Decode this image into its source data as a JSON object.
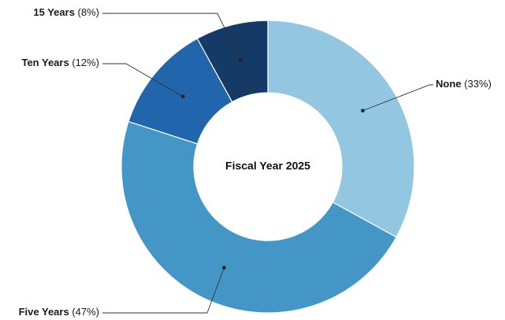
{
  "chart_data": {
    "type": "pie",
    "donut": true,
    "center_label": "Fiscal Year 2025",
    "slices": [
      {
        "name": "None",
        "percent_label": "(33%)",
        "value": 33,
        "color": "#93c6e0"
      },
      {
        "name": "Five Years",
        "percent_label": "(47%)",
        "value": 47,
        "color": "#4496c6"
      },
      {
        "name": "Ten Years",
        "percent_label": "(12%)",
        "value": 12,
        "color": "#2166ac"
      },
      {
        "name": "15 Years",
        "percent_label": "(8%)",
        "value": 8,
        "color": "#163a66"
      }
    ],
    "legend": "none",
    "data_labels": "outside-with-leader-lines"
  }
}
